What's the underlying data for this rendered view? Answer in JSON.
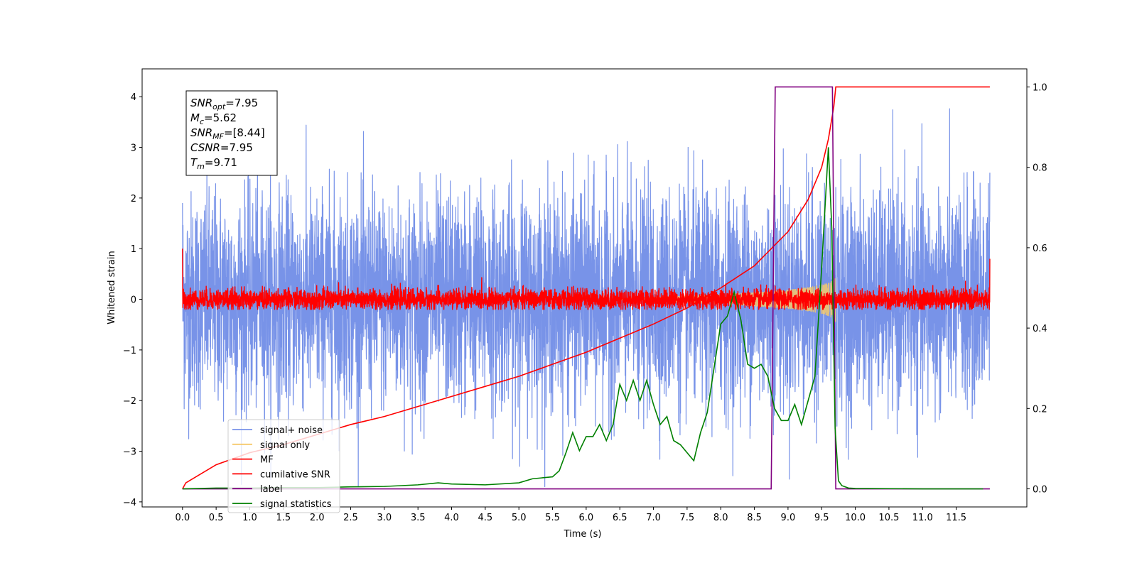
{
  "chart_data": {
    "type": "line",
    "title": "",
    "xlabel": "Time (s)",
    "ylabel": "Whitened strain",
    "y2label": "",
    "xlim": [
      -0.6,
      12.55
    ],
    "ylim": [
      -4.1,
      4.55
    ],
    "y2lim": [
      -0.045,
      1.045
    ],
    "xticks": [
      "0.0",
      "0.5",
      "1.0",
      "1.5",
      "2.0",
      "2.5",
      "3.0",
      "3.5",
      "4.0",
      "4.5",
      "5.0",
      "5.5",
      "6.0",
      "6.5",
      "7.0",
      "7.5",
      "8.0",
      "8.5",
      "9.0",
      "9.5",
      "10.0",
      "10.5",
      "11.0",
      "11.5"
    ],
    "yticks": [
      "4",
      "3",
      "2",
      "1",
      "0",
      "−1",
      "−2",
      "−3",
      "−4"
    ],
    "y2ticks": [
      "0.0",
      "0.2",
      "0.4",
      "0.6",
      "0.8",
      "1.0"
    ],
    "grid": false,
    "legend_position": "lower-left",
    "annotation": {
      "lines": [
        {
          "base": "SNR",
          "sub": "opt",
          "rest": "=7.95"
        },
        {
          "base": "M",
          "sub": "c",
          "rest": "=5.62"
        },
        {
          "base": "SNR",
          "sub": "MF",
          "rest": "=[8.44]"
        },
        {
          "base": "CSNR",
          "sub": "",
          "rest": "=7.95"
        },
        {
          "base": "T",
          "sub": "m",
          "rest": "=9.71"
        }
      ]
    },
    "series": [
      {
        "name": "signal+ noise",
        "color": "#7893e8",
        "axis": "left",
        "style": "noise",
        "t_start": 0.0,
        "t_end": 12.0,
        "sigma": 1.0
      },
      {
        "name": "signal only",
        "color": "#f5c96b",
        "axis": "left",
        "style": "chirp",
        "t_start": 6.5,
        "t_end": 9.71,
        "peak_amplitude": 0.45
      },
      {
        "name": "MF",
        "color": "#ff0000",
        "axis": "left",
        "style": "noise",
        "t_start": 0.0,
        "t_end": 12.0,
        "sigma": 0.1
      },
      {
        "name": "cumilative SNR",
        "color": "#ff0000",
        "axis": "right",
        "x": [
          0.0,
          0.05,
          0.5,
          1.0,
          1.5,
          2.0,
          2.5,
          3.0,
          3.5,
          4.0,
          4.5,
          5.0,
          5.5,
          6.0,
          6.5,
          7.0,
          7.5,
          8.0,
          8.5,
          9.0,
          9.3,
          9.5,
          9.6,
          9.68,
          9.71,
          12.0
        ],
        "y": [
          0.0,
          0.015,
          0.06,
          0.09,
          0.11,
          0.135,
          0.16,
          0.18,
          0.205,
          0.23,
          0.255,
          0.28,
          0.31,
          0.34,
          0.375,
          0.41,
          0.45,
          0.5,
          0.555,
          0.64,
          0.72,
          0.8,
          0.87,
          0.95,
          1.0,
          1.0
        ]
      },
      {
        "name": "label",
        "color": "#800080",
        "axis": "right",
        "x": [
          0.0,
          8.75,
          8.81,
          9.66,
          9.71,
          12.0
        ],
        "y": [
          0.0,
          0.0,
          1.0,
          1.0,
          0.0,
          0.0
        ]
      },
      {
        "name": "signal statistics",
        "color": "#008000",
        "axis": "right",
        "x": [
          0.0,
          0.5,
          1.0,
          1.5,
          2.0,
          2.5,
          3.0,
          3.5,
          3.8,
          4.0,
          4.5,
          5.0,
          5.2,
          5.5,
          5.6,
          5.7,
          5.8,
          5.9,
          6.0,
          6.1,
          6.2,
          6.3,
          6.4,
          6.5,
          6.6,
          6.7,
          6.8,
          6.9,
          7.0,
          7.1,
          7.2,
          7.3,
          7.4,
          7.5,
          7.6,
          7.7,
          7.8,
          7.9,
          8.0,
          8.1,
          8.2,
          8.3,
          8.4,
          8.5,
          8.6,
          8.7,
          8.8,
          8.9,
          9.0,
          9.1,
          9.2,
          9.3,
          9.4,
          9.5,
          9.55,
          9.6,
          9.65,
          9.7,
          9.75,
          9.8,
          9.9,
          10.0,
          11.0,
          11.9
        ],
        "y": [
          0.0,
          0.002,
          0.002,
          0.003,
          0.003,
          0.005,
          0.006,
          0.01,
          0.015,
          0.012,
          0.01,
          0.015,
          0.025,
          0.03,
          0.045,
          0.09,
          0.14,
          0.095,
          0.13,
          0.13,
          0.16,
          0.12,
          0.16,
          0.26,
          0.22,
          0.27,
          0.22,
          0.27,
          0.21,
          0.16,
          0.18,
          0.12,
          0.11,
          0.09,
          0.07,
          0.14,
          0.19,
          0.3,
          0.41,
          0.43,
          0.49,
          0.42,
          0.31,
          0.3,
          0.31,
          0.28,
          0.2,
          0.17,
          0.17,
          0.21,
          0.16,
          0.22,
          0.28,
          0.55,
          0.7,
          0.85,
          0.65,
          0.15,
          0.02,
          0.008,
          0.002,
          0.001,
          0.0,
          0.0
        ]
      }
    ]
  }
}
